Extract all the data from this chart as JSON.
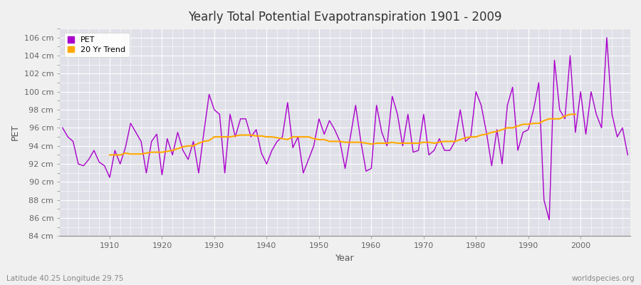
{
  "title": "Yearly Total Potential Evapotranspiration 1901 - 2009",
  "xlabel": "Year",
  "ylabel": "PET",
  "footnote_left": "Latitude 40.25 Longitude 29.75",
  "footnote_right": "worldspecies.org",
  "pet_color": "#aa00cc",
  "trend_color": "#ffaa00",
  "fig_bg_color": "#f0f0f0",
  "plot_bg_color": "#e0e0e8",
  "grid_color": "#ffffff",
  "ylim": [
    84,
    107
  ],
  "ytick_step": 2,
  "years": [
    1901,
    1902,
    1903,
    1904,
    1905,
    1906,
    1907,
    1908,
    1909,
    1910,
    1911,
    1912,
    1913,
    1914,
    1915,
    1916,
    1917,
    1918,
    1919,
    1920,
    1921,
    1922,
    1923,
    1924,
    1925,
    1926,
    1927,
    1928,
    1929,
    1930,
    1931,
    1932,
    1933,
    1934,
    1935,
    1936,
    1937,
    1938,
    1939,
    1940,
    1941,
    1942,
    1943,
    1944,
    1945,
    1946,
    1947,
    1948,
    1949,
    1950,
    1951,
    1952,
    1953,
    1954,
    1955,
    1956,
    1957,
    1958,
    1959,
    1960,
    1961,
    1962,
    1963,
    1964,
    1965,
    1966,
    1967,
    1968,
    1969,
    1970,
    1971,
    1972,
    1973,
    1974,
    1975,
    1976,
    1977,
    1978,
    1979,
    1980,
    1981,
    1982,
    1983,
    1984,
    1985,
    1986,
    1987,
    1988,
    1989,
    1990,
    1991,
    1992,
    1993,
    1994,
    1995,
    1996,
    1997,
    1998,
    1999,
    2000,
    2001,
    2002,
    2003,
    2004,
    2005,
    2006,
    2007,
    2008,
    2009
  ],
  "pet": [
    96.0,
    95.0,
    94.5,
    92.0,
    91.8,
    92.5,
    93.5,
    92.2,
    91.8,
    90.5,
    93.5,
    92.0,
    93.8,
    96.5,
    95.5,
    94.5,
    91.0,
    94.5,
    95.3,
    90.8,
    94.8,
    93.0,
    95.5,
    93.5,
    92.5,
    94.5,
    91.0,
    95.5,
    99.7,
    98.0,
    97.5,
    91.0,
    97.5,
    95.0,
    97.0,
    97.0,
    95.0,
    95.8,
    93.2,
    92.0,
    93.5,
    94.5,
    95.0,
    98.8,
    93.8,
    95.0,
    91.0,
    92.5,
    94.0,
    97.0,
    95.3,
    96.8,
    95.8,
    94.5,
    91.5,
    95.0,
    98.5,
    94.5,
    91.2,
    91.5,
    98.5,
    95.5,
    94.0,
    99.5,
    97.5,
    94.0,
    97.5,
    93.3,
    93.5,
    97.5,
    93.0,
    93.5,
    94.8,
    93.5,
    93.5,
    94.5,
    98.0,
    94.5,
    95.0,
    100.0,
    98.5,
    95.5,
    91.8,
    95.8,
    92.0,
    98.5,
    100.5,
    93.5,
    95.5,
    95.8,
    98.0,
    101.0,
    88.0,
    85.8,
    103.5,
    98.0,
    97.0,
    104.0,
    95.5,
    100.0,
    95.3,
    100.0,
    97.5,
    96.0,
    106.0,
    97.5,
    95.0,
    96.0,
    93.0
  ],
  "trend": [
    null,
    null,
    null,
    null,
    null,
    null,
    null,
    null,
    null,
    93.0,
    93.0,
    93.0,
    93.2,
    93.1,
    93.1,
    93.1,
    93.2,
    93.3,
    93.3,
    93.3,
    93.4,
    93.5,
    93.7,
    93.9,
    94.0,
    94.0,
    94.3,
    94.5,
    94.6,
    95.0,
    95.0,
    95.0,
    95.0,
    95.1,
    95.2,
    95.2,
    95.2,
    95.1,
    95.1,
    95.0,
    95.0,
    94.9,
    94.8,
    94.7,
    95.0,
    95.0,
    95.0,
    95.0,
    94.8,
    94.7,
    94.7,
    94.5,
    94.5,
    94.5,
    94.4,
    94.4,
    94.4,
    94.4,
    94.3,
    94.2,
    94.3,
    94.3,
    94.3,
    94.4,
    94.3,
    94.3,
    94.3,
    94.3,
    94.3,
    94.4,
    94.4,
    94.3,
    94.4,
    94.5,
    94.5,
    94.5,
    94.7,
    94.9,
    95.0,
    95.0,
    95.2,
    95.3,
    95.5,
    95.6,
    95.8,
    96.0,
    96.0,
    96.2,
    96.4,
    96.4,
    96.5,
    96.5,
    96.8,
    97.0,
    97.0,
    97.0,
    97.3,
    97.5,
    97.5,
    null,
    null,
    null,
    null,
    null,
    null,
    null,
    null,
    null
  ]
}
